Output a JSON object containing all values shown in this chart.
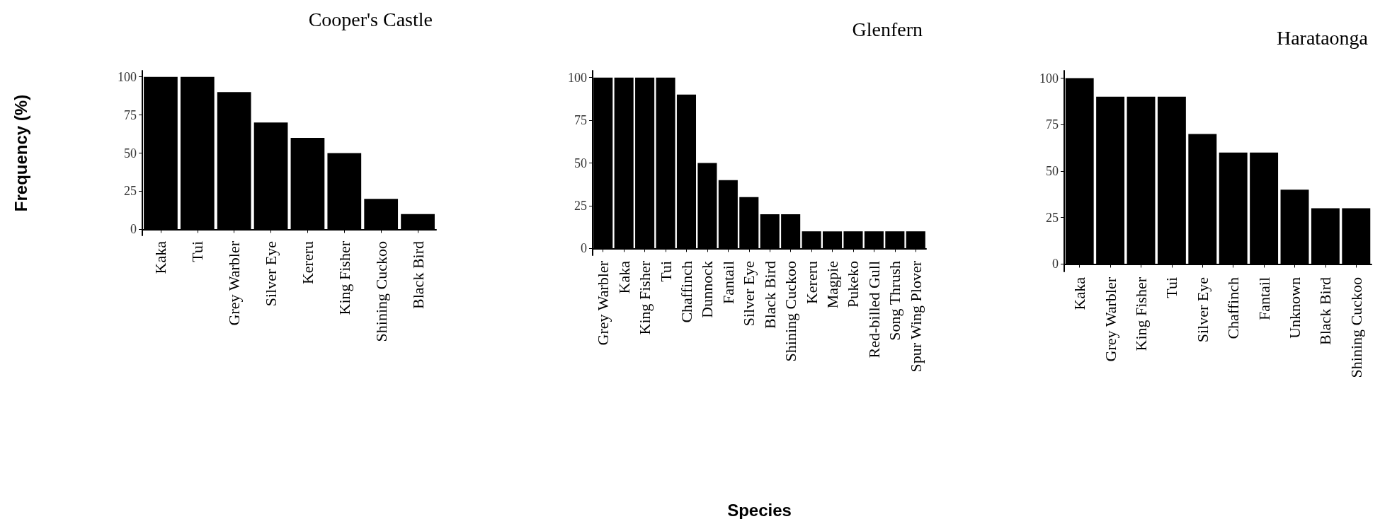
{
  "chart_data": [
    {
      "type": "bar",
      "title": "Cooper's Castle",
      "ylabel": "Frequency (%)",
      "categories": [
        "Kaka",
        "Tui",
        "Grey Warbler",
        "Silver Eye",
        "Kereru",
        "King Fisher",
        "Shining Cuckoo",
        "Black Bird"
      ],
      "values": [
        100,
        100,
        90,
        70,
        60,
        50,
        20,
        10
      ],
      "color": "#000000",
      "ylim": [
        -4,
        104
      ],
      "yticks": [
        0,
        25,
        50,
        75,
        100
      ],
      "grid": false
    },
    {
      "type": "bar",
      "title": "Glenfern",
      "xlabel": "Species",
      "categories": [
        "Grey Warbler",
        "Kaka",
        "King Fisher",
        "Tui",
        "Chaffinch",
        "Dunnock",
        "Fantail",
        "Silver Eye",
        "Black Bird",
        "Shining Cuckoo",
        "Kereru",
        "Magpie",
        "Pukeko",
        "Red-billed Gull",
        "Song Thrush",
        "Spur Wing Plover"
      ],
      "values": [
        100,
        100,
        100,
        100,
        90,
        50,
        40,
        30,
        20,
        20,
        10,
        10,
        10,
        10,
        10,
        10
      ],
      "color": "#000000",
      "ylim": [
        -4,
        104
      ],
      "yticks": [
        0,
        25,
        50,
        75,
        100
      ],
      "grid": false
    },
    {
      "type": "bar",
      "title": "Harataonga",
      "categories": [
        "Kaka",
        "Grey Warbler",
        "King Fisher",
        "Tui",
        "Silver Eye",
        "Chaffinch",
        "Fantail",
        "Unknown",
        "Black Bird",
        "Shining Cuckoo"
      ],
      "values": [
        100,
        90,
        90,
        90,
        70,
        60,
        60,
        40,
        30,
        30
      ],
      "color": "#000000",
      "ylim": [
        -4,
        104
      ],
      "yticks": [
        0,
        25,
        50,
        75,
        100
      ],
      "grid": false
    }
  ]
}
